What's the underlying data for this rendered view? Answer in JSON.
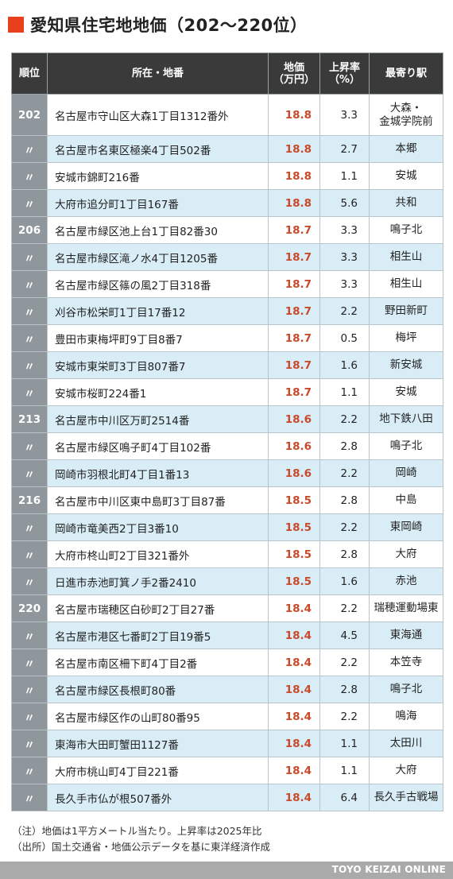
{
  "title": "愛知県住宅地地価（202〜220位）",
  "headers": {
    "rank": "順位",
    "address": "所在・地番",
    "price_line1": "地価",
    "price_line2": "（万円）",
    "rate_line1": "上昇率",
    "rate_line2": "（%）",
    "station": "最寄り駅"
  },
  "rows": [
    {
      "rank": "202",
      "address": "名古屋市守山区大森1丁目1312番外",
      "price": "18.8",
      "rate": "3.3",
      "station_line1": "大森・",
      "station_line2": "金城学院前"
    },
    {
      "rank": "〃",
      "address": "名古屋市名東区極楽4丁目502番",
      "price": "18.8",
      "rate": "2.7",
      "station_line1": "本郷",
      "station_line2": ""
    },
    {
      "rank": "〃",
      "address": "安城市錦町216番",
      "price": "18.8",
      "rate": "1.1",
      "station_line1": "安城",
      "station_line2": ""
    },
    {
      "rank": "〃",
      "address": "大府市追分町1丁目167番",
      "price": "18.8",
      "rate": "5.6",
      "station_line1": "共和",
      "station_line2": ""
    },
    {
      "rank": "206",
      "address": "名古屋市緑区池上台1丁目82番30",
      "price": "18.7",
      "rate": "3.3",
      "station_line1": "鳴子北",
      "station_line2": ""
    },
    {
      "rank": "〃",
      "address": "名古屋市緑区滝ノ水4丁目1205番",
      "price": "18.7",
      "rate": "3.3",
      "station_line1": "相生山",
      "station_line2": ""
    },
    {
      "rank": "〃",
      "address": "名古屋市緑区篠の風2丁目318番",
      "price": "18.7",
      "rate": "3.3",
      "station_line1": "相生山",
      "station_line2": ""
    },
    {
      "rank": "〃",
      "address": "刈谷市松栄町1丁目17番12",
      "price": "18.7",
      "rate": "2.2",
      "station_line1": "野田新町",
      "station_line2": ""
    },
    {
      "rank": "〃",
      "address": "豊田市東梅坪町9丁目8番7",
      "price": "18.7",
      "rate": "0.5",
      "station_line1": "梅坪",
      "station_line2": ""
    },
    {
      "rank": "〃",
      "address": "安城市東栄町3丁目807番7",
      "price": "18.7",
      "rate": "1.6",
      "station_line1": "新安城",
      "station_line2": ""
    },
    {
      "rank": "〃",
      "address": "安城市桜町224番1",
      "price": "18.7",
      "rate": "1.1",
      "station_line1": "安城",
      "station_line2": ""
    },
    {
      "rank": "213",
      "address": "名古屋市中川区万町2514番",
      "price": "18.6",
      "rate": "2.2",
      "station_line1": "地下鉄八田",
      "station_line2": ""
    },
    {
      "rank": "〃",
      "address": "名古屋市緑区鳴子町4丁目102番",
      "price": "18.6",
      "rate": "2.8",
      "station_line1": "鳴子北",
      "station_line2": ""
    },
    {
      "rank": "〃",
      "address": "岡崎市羽根北町4丁目1番13",
      "price": "18.6",
      "rate": "2.2",
      "station_line1": "岡崎",
      "station_line2": ""
    },
    {
      "rank": "216",
      "address": "名古屋市中川区東中島町3丁目87番",
      "price": "18.5",
      "rate": "2.8",
      "station_line1": "中島",
      "station_line2": ""
    },
    {
      "rank": "〃",
      "address": "岡崎市竜美西2丁目3番10",
      "price": "18.5",
      "rate": "2.2",
      "station_line1": "東岡崎",
      "station_line2": ""
    },
    {
      "rank": "〃",
      "address": "大府市柊山町2丁目321番外",
      "price": "18.5",
      "rate": "2.8",
      "station_line1": "大府",
      "station_line2": ""
    },
    {
      "rank": "〃",
      "address": "日進市赤池町箕ノ手2番2410",
      "price": "18.5",
      "rate": "1.6",
      "station_line1": "赤池",
      "station_line2": ""
    },
    {
      "rank": "220",
      "address": "名古屋市瑞穂区白砂町2丁目27番",
      "price": "18.4",
      "rate": "2.2",
      "station_line1": "瑞穂運動場東",
      "station_line2": ""
    },
    {
      "rank": "〃",
      "address": "名古屋市港区七番町2丁目19番5",
      "price": "18.4",
      "rate": "4.5",
      "station_line1": "東海通",
      "station_line2": ""
    },
    {
      "rank": "〃",
      "address": "名古屋市南区柵下町4丁目2番",
      "price": "18.4",
      "rate": "2.2",
      "station_line1": "本笠寺",
      "station_line2": ""
    },
    {
      "rank": "〃",
      "address": "名古屋市緑区長根町80番",
      "price": "18.4",
      "rate": "2.8",
      "station_line1": "鳴子北",
      "station_line2": ""
    },
    {
      "rank": "〃",
      "address": "名古屋市緑区作の山町80番95",
      "price": "18.4",
      "rate": "2.2",
      "station_line1": "鳴海",
      "station_line2": ""
    },
    {
      "rank": "〃",
      "address": "東海市大田町蟹田1127番",
      "price": "18.4",
      "rate": "1.1",
      "station_line1": "太田川",
      "station_line2": ""
    },
    {
      "rank": "〃",
      "address": "大府市桃山町4丁目221番",
      "price": "18.4",
      "rate": "1.1",
      "station_line1": "大府",
      "station_line2": ""
    },
    {
      "rank": "〃",
      "address": "長久手市仏が根507番外",
      "price": "18.4",
      "rate": "6.4",
      "station_line1": "長久手古戦場",
      "station_line2": ""
    }
  ],
  "notes": {
    "line1": "（注）地価は1平方メートル当たり。上昇率は2025年比",
    "line2": "（出所）国土交通省・地価公示データを基に東洋経済作成"
  },
  "footer": {
    "brand": "TOYO KEIZAI ONLINE"
  },
  "colors": {
    "accent": "#e8401c",
    "header_bg": "#3a3a3a",
    "rank_bg": "#8f979c",
    "row_alt_bg": "#d9edf7",
    "price_text": "#c94a2a",
    "footer_bg": "#aaaaaa"
  }
}
